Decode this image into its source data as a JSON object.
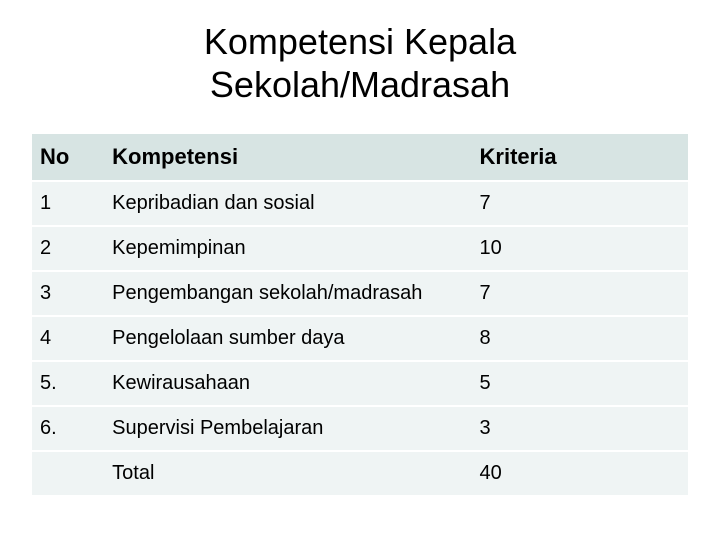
{
  "title_line1": "Kompetensi Kepala",
  "title_line2": "Sekolah/Madrasah",
  "table": {
    "header_bg": "#d7e4e3",
    "row_bg": "#eff4f4",
    "border_color": "#ffffff",
    "columns": {
      "no": "No",
      "kompetensi": "Kompetensi",
      "kriteria": "Kriteria"
    },
    "rows": [
      {
        "no": "1",
        "kompetensi": "Kepribadian dan sosial",
        "kriteria": "7"
      },
      {
        "no": "2",
        "kompetensi": "Kepemimpinan",
        "kriteria": "10"
      },
      {
        "no": "3",
        "kompetensi": "Pengembangan sekolah/madrasah",
        "kriteria": "7"
      },
      {
        "no": "4",
        "kompetensi": "Pengelolaan sumber daya",
        "kriteria": "8"
      },
      {
        "no": "5.",
        "kompetensi": "Kewirausahaan",
        "kriteria": "5"
      },
      {
        "no": "6.",
        "kompetensi": "Supervisi Pembelajaran",
        "kriteria": "3"
      },
      {
        "no": "",
        "kompetensi": "Total",
        "kriteria": "40"
      }
    ]
  }
}
